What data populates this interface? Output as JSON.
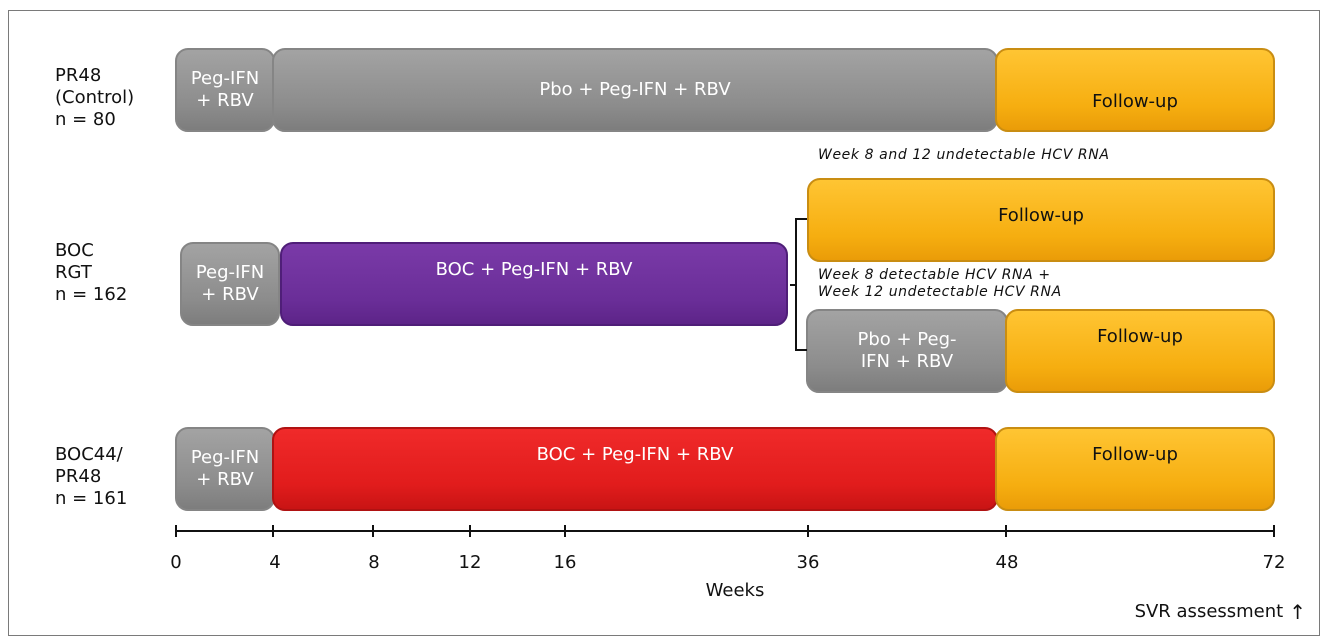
{
  "arms": [
    {
      "id": "pr48",
      "label": "PR48\n(Control)\nn = 80"
    },
    {
      "id": "boc-rgt",
      "label": "BOC\nRGT\nn = 162"
    },
    {
      "id": "boc44",
      "label": "BOC44/\nPR48\nn = 161"
    }
  ],
  "segments": {
    "pr48_leadin": "Peg-IFN\n+ RBV",
    "pr48_main": "Pbo + Peg-IFN + RBV",
    "pr48_followup": "Follow-up",
    "rgt_leadin": "Peg-IFN\n+ RBV",
    "rgt_main": "BOC + Peg-IFN + RBV",
    "rgt_followup_a": "Follow-up",
    "rgt_pbo": "Pbo + Peg-\nIFN + RBV",
    "rgt_followup_b": "Follow-up",
    "boc44_leadin": "Peg-IFN\n+ RBV",
    "boc44_main": "BOC + Peg-IFN + RBV",
    "boc44_followup": "Follow-up"
  },
  "notes": {
    "undetectable": "Week 8 and 12 undetectable HCV RNA",
    "detectable": "Week 8 detectable HCV RNA +\nWeek 12 undetectable HCV RNA"
  },
  "axis": {
    "title": "Weeks",
    "ticks": [
      "0",
      "4",
      "8",
      "12",
      "16",
      "36",
      "48",
      "72"
    ]
  },
  "footnote": {
    "text": "SVR assessment",
    "arrow_icon": "arrow-up-icon"
  },
  "colors": {
    "grey": "#8c8c8c",
    "gold": "#f6ae10",
    "purple": "#6a2e98",
    "red": "#e11c1c"
  }
}
